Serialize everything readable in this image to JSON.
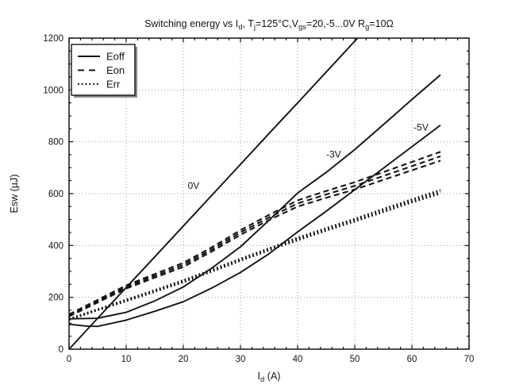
{
  "figure": {
    "background": "#ffffff",
    "line_color": "#141414",
    "grid_color": "#9c9c9c",
    "title_segments": [
      {
        "t": "Switching energy vs I"
      },
      {
        "t": "d",
        "sub": true
      },
      {
        "t": ", T"
      },
      {
        "t": "j",
        "sub": true
      },
      {
        "t": "=125°C,V"
      },
      {
        "t": "gs",
        "sub": true
      },
      {
        "t": "=20,-5...0V R"
      },
      {
        "t": "g",
        "sub": true
      },
      {
        "t": "=10Ω"
      }
    ],
    "xlabel_segments": [
      {
        "t": "I"
      },
      {
        "t": "d",
        "sub": true
      },
      {
        "t": " (A)"
      }
    ],
    "ylabel_text": "Esw (µJ)"
  },
  "chart_data": {
    "type": "line",
    "title": "Switching energy vs Id, Tj=125°C, Vgs=20,-5...0V Rg=10Ω",
    "xlabel": "Id (A)",
    "ylabel": "Esw (µJ)",
    "xlim": [
      0,
      70
    ],
    "ylim": [
      0,
      1200
    ],
    "xticks": [
      0,
      10,
      20,
      30,
      40,
      50,
      60,
      70
    ],
    "yticks": [
      0,
      200,
      400,
      600,
      800,
      1000,
      1200
    ],
    "x_minor_step": 2,
    "y_minor_step": 50,
    "grid": "dotted gridlines at major ticks, both axes",
    "legend": {
      "position": "upper-left",
      "entries": [
        {
          "label": "Eoff",
          "style": "solid"
        },
        {
          "label": "Eon",
          "style": "dashed"
        },
        {
          "label": "Err",
          "style": "dotted"
        }
      ]
    },
    "annotations": [
      {
        "text": "0V",
        "x": 21.8,
        "y": 630
      },
      {
        "text": "-3V",
        "x": 46.3,
        "y": 752
      },
      {
        "text": "-5V",
        "x": 61.6,
        "y": 856
      }
    ],
    "series": [
      {
        "name": "Eoff 0V",
        "group": "Eoff",
        "style": "solid",
        "points": [
          [
            0,
            0
          ],
          [
            5,
            119
          ],
          [
            10,
            238
          ],
          [
            15,
            356
          ],
          [
            20,
            475
          ],
          [
            25,
            594
          ],
          [
            30,
            713
          ],
          [
            35,
            832
          ],
          [
            40,
            950
          ],
          [
            45,
            1069
          ],
          [
            50,
            1188
          ],
          [
            50.5,
            1200
          ]
        ]
      },
      {
        "name": "Eoff -3V",
        "group": "Eoff",
        "style": "solid",
        "points": [
          [
            0,
            117
          ],
          [
            5,
            119
          ],
          [
            10,
            142
          ],
          [
            15,
            186
          ],
          [
            20,
            240
          ],
          [
            25,
            313
          ],
          [
            30,
            395
          ],
          [
            35,
            497
          ],
          [
            40,
            602
          ],
          [
            45,
            682
          ],
          [
            50,
            770
          ],
          [
            55,
            866
          ],
          [
            60,
            963
          ],
          [
            65,
            1058
          ]
        ]
      },
      {
        "name": "Eoff -5V",
        "group": "Eoff",
        "style": "solid",
        "points": [
          [
            0,
            96
          ],
          [
            3,
            89
          ],
          [
            5,
            88
          ],
          [
            10,
            112
          ],
          [
            15,
            146
          ],
          [
            20,
            183
          ],
          [
            25,
            236
          ],
          [
            30,
            296
          ],
          [
            35,
            368
          ],
          [
            40,
            452
          ],
          [
            45,
            532
          ],
          [
            50,
            615
          ],
          [
            55,
            698
          ],
          [
            60,
            781
          ],
          [
            65,
            864
          ]
        ]
      },
      {
        "name": "Eon variant upper",
        "group": "Eon",
        "style": "dashed",
        "points": [
          [
            0,
            134
          ],
          [
            5,
            190
          ],
          [
            10,
            246
          ],
          [
            15,
            290
          ],
          [
            20,
            333
          ],
          [
            25,
            393
          ],
          [
            30,
            459
          ],
          [
            35,
            518
          ],
          [
            40,
            574
          ],
          [
            45,
            610
          ],
          [
            50,
            644
          ],
          [
            55,
            683
          ],
          [
            60,
            722
          ],
          [
            65,
            761
          ]
        ]
      },
      {
        "name": "Eon variant middle",
        "group": "Eon",
        "style": "dashed",
        "points": [
          [
            0,
            130
          ],
          [
            5,
            185
          ],
          [
            10,
            240
          ],
          [
            15,
            283
          ],
          [
            20,
            325
          ],
          [
            25,
            385
          ],
          [
            30,
            450
          ],
          [
            35,
            508
          ],
          [
            40,
            562
          ],
          [
            45,
            597
          ],
          [
            50,
            630
          ],
          [
            55,
            668
          ],
          [
            60,
            706
          ],
          [
            65,
            744
          ]
        ]
      },
      {
        "name": "Eon variant lower",
        "group": "Eon",
        "style": "dashed",
        "points": [
          [
            0,
            126
          ],
          [
            5,
            180
          ],
          [
            10,
            234
          ],
          [
            15,
            276
          ],
          [
            20,
            317
          ],
          [
            25,
            377
          ],
          [
            30,
            441
          ],
          [
            35,
            498
          ],
          [
            40,
            550
          ],
          [
            45,
            584
          ],
          [
            50,
            616
          ],
          [
            55,
            653
          ],
          [
            60,
            690
          ],
          [
            65,
            727
          ]
        ]
      },
      {
        "name": "Err variant upper",
        "group": "Err",
        "style": "dotted",
        "points": [
          [
            0,
            117
          ],
          [
            5,
            154
          ],
          [
            10,
            191
          ],
          [
            15,
            228
          ],
          [
            20,
            266
          ],
          [
            25,
            307
          ],
          [
            30,
            349
          ],
          [
            35,
            389
          ],
          [
            40,
            430
          ],
          [
            45,
            467
          ],
          [
            50,
            503
          ],
          [
            55,
            541
          ],
          [
            60,
            578
          ],
          [
            65,
            614
          ]
        ]
      },
      {
        "name": "Err variant middle",
        "group": "Err",
        "style": "dotted",
        "points": [
          [
            0,
            115
          ],
          [
            5,
            152
          ],
          [
            10,
            188
          ],
          [
            15,
            225
          ],
          [
            20,
            262
          ],
          [
            25,
            303
          ],
          [
            30,
            345
          ],
          [
            35,
            385
          ],
          [
            40,
            425
          ],
          [
            45,
            462
          ],
          [
            50,
            498
          ],
          [
            55,
            535
          ],
          [
            60,
            572
          ],
          [
            65,
            607
          ]
        ]
      },
      {
        "name": "Err variant lower",
        "group": "Err",
        "style": "dotted",
        "points": [
          [
            0,
            113
          ],
          [
            5,
            150
          ],
          [
            10,
            185
          ],
          [
            15,
            221
          ],
          [
            20,
            258
          ],
          [
            25,
            299
          ],
          [
            30,
            341
          ],
          [
            35,
            381
          ],
          [
            40,
            420
          ],
          [
            45,
            457
          ],
          [
            50,
            493
          ],
          [
            55,
            529
          ],
          [
            60,
            566
          ],
          [
            65,
            600
          ]
        ]
      }
    ]
  }
}
